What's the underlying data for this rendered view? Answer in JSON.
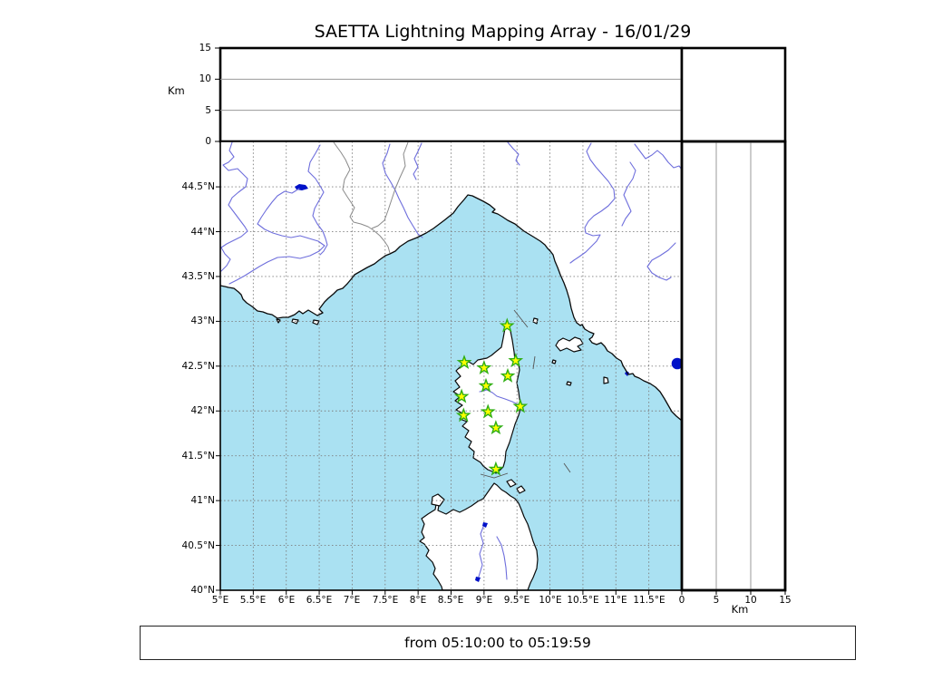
{
  "title": "SAETTA Lightning Mapping Array - 16/01/29",
  "footer": {
    "text": "from 05:10:00 to 05:19:59"
  },
  "top_panel": {
    "unit_label": "Km",
    "ticks": [
      "15",
      "10",
      "5",
      "0"
    ]
  },
  "right_panel": {
    "unit_label": "Km",
    "ticks": [
      "0",
      "5",
      "10",
      "15"
    ]
  },
  "map": {
    "lat_ticks": [
      "44.5°N",
      "44°N",
      "43.5°N",
      "43°N",
      "42.5°N",
      "42°N",
      "41.5°N",
      "41°N",
      "40.5°N",
      "40°N"
    ],
    "lon_ticks": [
      "5°E",
      "5.5°E",
      "6°E",
      "6.5°E",
      "7°E",
      "7.5°E",
      "8°E",
      "8.5°E",
      "9°E",
      "9.5°E",
      "10°E",
      "10.5°E",
      "11°E",
      "11.5°E"
    ]
  },
  "colors": {
    "sea": "#aae1f2",
    "land": "#ffffff",
    "river": "#6e6edc",
    "lake": "#0011c8",
    "station_fill": "#ffff00",
    "station_edge": "#2fae13"
  },
  "chart_data": {
    "type": "scatter",
    "title": "SAETTA Lightning Mapping Array - 16/01/29",
    "time_window": "from 05:10:00 to 05:19:59",
    "panels": [
      {
        "name": "altitude_vs_longitude",
        "position": "top",
        "ylabel": "Km",
        "ylim": [
          0,
          15
        ],
        "yticks": [
          0,
          5,
          10,
          15
        ],
        "grid": "horizontal lines at 5 and 10 km",
        "points": []
      },
      {
        "name": "altitude_histogram_box",
        "position": "top-right",
        "points": []
      },
      {
        "name": "plan_view_map",
        "position": "main",
        "lon_range_deg_e": [
          5,
          12
        ],
        "lat_range_deg_n": [
          40,
          45
        ],
        "lon_tick_step_deg": 0.5,
        "lat_tick_step_deg": 0.5,
        "grid": "0.5 degree dashed graticule",
        "marker": "star",
        "stations_lon_lat": [
          [
            9.35,
            42.95
          ],
          [
            8.7,
            42.54
          ],
          [
            9.0,
            42.48
          ],
          [
            9.48,
            42.56
          ],
          [
            9.36,
            42.39
          ],
          [
            9.03,
            42.28
          ],
          [
            8.66,
            42.16
          ],
          [
            9.55,
            42.05
          ],
          [
            9.06,
            41.99
          ],
          [
            8.69,
            41.95
          ],
          [
            9.18,
            41.81
          ],
          [
            9.18,
            41.35
          ]
        ]
      },
      {
        "name": "altitude_vs_latitude",
        "position": "right",
        "xlabel": "Km",
        "xlim": [
          0,
          15
        ],
        "xticks": [
          0,
          5,
          10,
          15
        ],
        "grid": "vertical lines at 5 and 10 km",
        "points": []
      }
    ]
  }
}
